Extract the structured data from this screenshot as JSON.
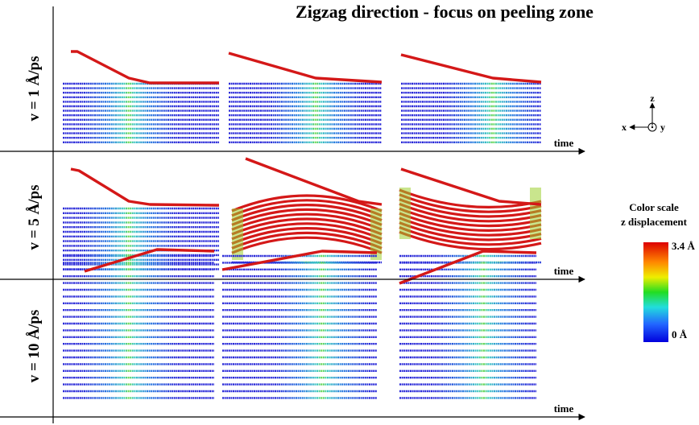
{
  "title": "Zigzag direction - focus on peeling zone",
  "rows": [
    {
      "label": "v = 1 Å/ps",
      "time_label": "time"
    },
    {
      "label": "v = 5 Å/ps",
      "time_label": "time"
    },
    {
      "label": "v = 10 Å/ps",
      "time_label": "time"
    }
  ],
  "axes": {
    "x": "x",
    "y": "y",
    "z": "z"
  },
  "color_scale": {
    "title": "Color scale",
    "subtitle": "z displacement",
    "max_label": "3.4 Å",
    "min_label": "0  Å"
  }
}
